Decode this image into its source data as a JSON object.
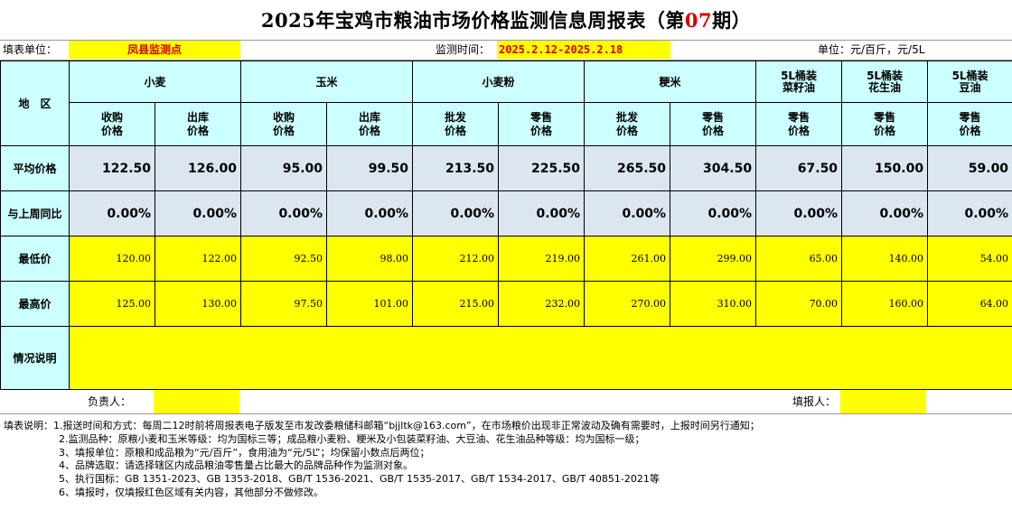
{
  "title": {
    "prefix": "2025年宝鸡市粮油市场价格监测信息周报表（第",
    "issue": "07",
    "suffix": "期）"
  },
  "meta": {
    "unit_label": "填表单位：",
    "unit_value": "凤县监测点",
    "time_label": "监测时间：",
    "time_value": "2025.2.12-2025.2.18",
    "unit_of_measure": "单位：元/百斤，元/5L"
  },
  "header": {
    "region": "地　区",
    "groups": [
      "小麦",
      "玉米",
      "小麦粉",
      "粳米"
    ],
    "single": [
      [
        "5L桶装",
        "菜籽油"
      ],
      [
        "5L桶装",
        "花生油"
      ],
      [
        "5L桶装",
        "豆油"
      ]
    ],
    "sub": [
      [
        "收购",
        "价格"
      ],
      [
        "出库",
        "价格"
      ],
      [
        "收购",
        "价格"
      ],
      [
        "出库",
        "价格"
      ],
      [
        "批发",
        "价格"
      ],
      [
        "零售",
        "价格"
      ],
      [
        "批发",
        "价格"
      ],
      [
        "零售",
        "价格"
      ]
    ],
    "single_sub": [
      [
        "零售",
        "价格"
      ],
      [
        "零售",
        "价格"
      ],
      [
        "零售",
        "价格"
      ]
    ]
  },
  "rows": {
    "avg": {
      "label": "平均价格",
      "values": [
        "122.50",
        "126.00",
        "95.00",
        "99.50",
        "213.50",
        "225.50",
        "265.50",
        "304.50",
        "67.50",
        "150.00",
        "59.00"
      ]
    },
    "yoy": {
      "label": "与上周同比",
      "values": [
        "0.00%",
        "0.00%",
        "0.00%",
        "0.00%",
        "0.00%",
        "0.00%",
        "0.00%",
        "0.00%",
        "0.00%",
        "0.00%",
        "0.00%"
      ]
    },
    "min": {
      "label": "最低价",
      "values": [
        "120.00",
        "122.00",
        "92.50",
        "98.00",
        "212.00",
        "219.00",
        "261.00",
        "299.00",
        "65.00",
        "140.00",
        "54.00"
      ]
    },
    "max": {
      "label": "最高价",
      "values": [
        "125.00",
        "130.00",
        "97.50",
        "101.00",
        "215.00",
        "232.00",
        "270.00",
        "310.00",
        "70.00",
        "160.00",
        "64.00"
      ]
    },
    "note": {
      "label": "情况说明",
      "value": ""
    }
  },
  "footer": {
    "responsible_label": "负责人：",
    "responsible_value": "",
    "filler_label": "填报人：",
    "filler_value": ""
  },
  "notes": [
    "填表说明：1.报送时间和方式：每周二12时前将周报表电子版发至市发改委粮储科邮箱“bjjltk@163.com”，在市场粮价出现非正常波动及确有需要时，上报时间另行通知；",
    "2.监测品种：原粮小麦和玉米等级：均为国标三等；成品粮小麦粉、粳米及小包装菜籽油、大豆油、花生油品种等级：均为国标一级；",
    "3、填报单位：原粮和成品粮为“元/百斤”，食用油为“元/5L”；均保留小数点后两位；",
    "4、品牌选取：请选择辖区内成品粮油零售量占比最大的品牌品种作为监测对象。",
    "5、执行国标：GB 1351-2023、GB 1353-2018、GB/T 1536-2021、GB/T 1535-2017、GB/T 1534-2017、GB/T 40851-2021等",
    "6、填报时，仅填报红色区域有关内容，其他部分不做修改。"
  ]
}
